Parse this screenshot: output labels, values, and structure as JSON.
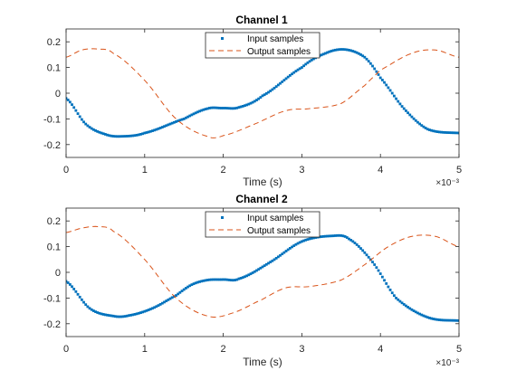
{
  "chart_data": [
    {
      "type": "line",
      "title": "Channel 1",
      "xlabel": "Time (s)",
      "ylabel": "",
      "x_exponent_label": "×10⁻³",
      "xlim": [
        0,
        5
      ],
      "ylim": [
        -0.25,
        0.25
      ],
      "xticks": [
        0,
        1,
        2,
        3,
        4,
        5
      ],
      "yticks": [
        -0.2,
        -0.1,
        0,
        0.1,
        0.2
      ],
      "ytick_labels": [
        "-0.2",
        "-0.1",
        "0",
        "0.1",
        "0.2"
      ],
      "legend_position": "top-center",
      "grid": false,
      "series": [
        {
          "name": "Input samples",
          "style": "points",
          "color": "#0072BD",
          "x": [
            0,
            0.25,
            0.5,
            0.7,
            1.0,
            1.5,
            1.8,
            2.0,
            2.2,
            2.5,
            3.0,
            3.3,
            3.55,
            3.8,
            4.0,
            4.3,
            4.6,
            5.0
          ],
          "y": [
            -0.02,
            -0.12,
            -0.16,
            -0.168,
            -0.155,
            -0.1,
            -0.06,
            -0.058,
            -0.055,
            -0.01,
            0.1,
            0.155,
            0.17,
            0.14,
            0.06,
            -0.06,
            -0.14,
            -0.155
          ]
        },
        {
          "name": "Output samples",
          "style": "dashed",
          "color": "#D95319",
          "x": [
            0,
            0.2,
            0.4,
            0.6,
            1.0,
            1.4,
            1.8,
            2.0,
            2.4,
            2.8,
            3.1,
            3.5,
            3.8,
            4.0,
            4.4,
            4.7,
            5.0
          ],
          "y": [
            0.14,
            0.168,
            0.172,
            0.155,
            0.05,
            -0.1,
            -0.168,
            -0.165,
            -0.12,
            -0.068,
            -0.06,
            -0.04,
            0.03,
            0.09,
            0.155,
            0.168,
            0.14
          ]
        }
      ]
    },
    {
      "type": "line",
      "title": "Channel 2",
      "xlabel": "Time (s)",
      "ylabel": "",
      "x_exponent_label": "×10⁻³",
      "xlim": [
        0,
        5
      ],
      "ylim": [
        -0.25,
        0.25
      ],
      "xticks": [
        0,
        1,
        2,
        3,
        4,
        5
      ],
      "yticks": [
        -0.2,
        -0.1,
        0,
        0.1,
        0.2
      ],
      "ytick_labels": [
        "-0.2",
        "-0.1",
        "0",
        "0.1",
        "0.2"
      ],
      "legend_position": "top-center",
      "grid": false,
      "series": [
        {
          "name": "Input samples",
          "style": "points",
          "color": "#0072BD",
          "x": [
            0,
            0.3,
            0.6,
            0.8,
            1.1,
            1.4,
            1.6,
            1.8,
            2.0,
            2.2,
            2.6,
            3.0,
            3.4,
            3.6,
            3.9,
            4.2,
            4.6,
            5.0
          ],
          "y": [
            -0.035,
            -0.14,
            -0.17,
            -0.168,
            -0.14,
            -0.09,
            -0.048,
            -0.03,
            -0.028,
            -0.025,
            0.04,
            0.12,
            0.142,
            0.13,
            0.04,
            -0.1,
            -0.175,
            -0.188
          ]
        },
        {
          "name": "Output samples",
          "style": "dashed",
          "color": "#D95319",
          "x": [
            0,
            0.2,
            0.4,
            0.6,
            1.0,
            1.4,
            1.8,
            2.1,
            2.5,
            2.8,
            3.1,
            3.5,
            3.8,
            4.1,
            4.4,
            4.7,
            5.0
          ],
          "y": [
            0.155,
            0.172,
            0.178,
            0.16,
            0.05,
            -0.1,
            -0.17,
            -0.16,
            -0.105,
            -0.06,
            -0.055,
            -0.03,
            0.03,
            0.1,
            0.14,
            0.14,
            0.1
          ]
        }
      ]
    }
  ]
}
